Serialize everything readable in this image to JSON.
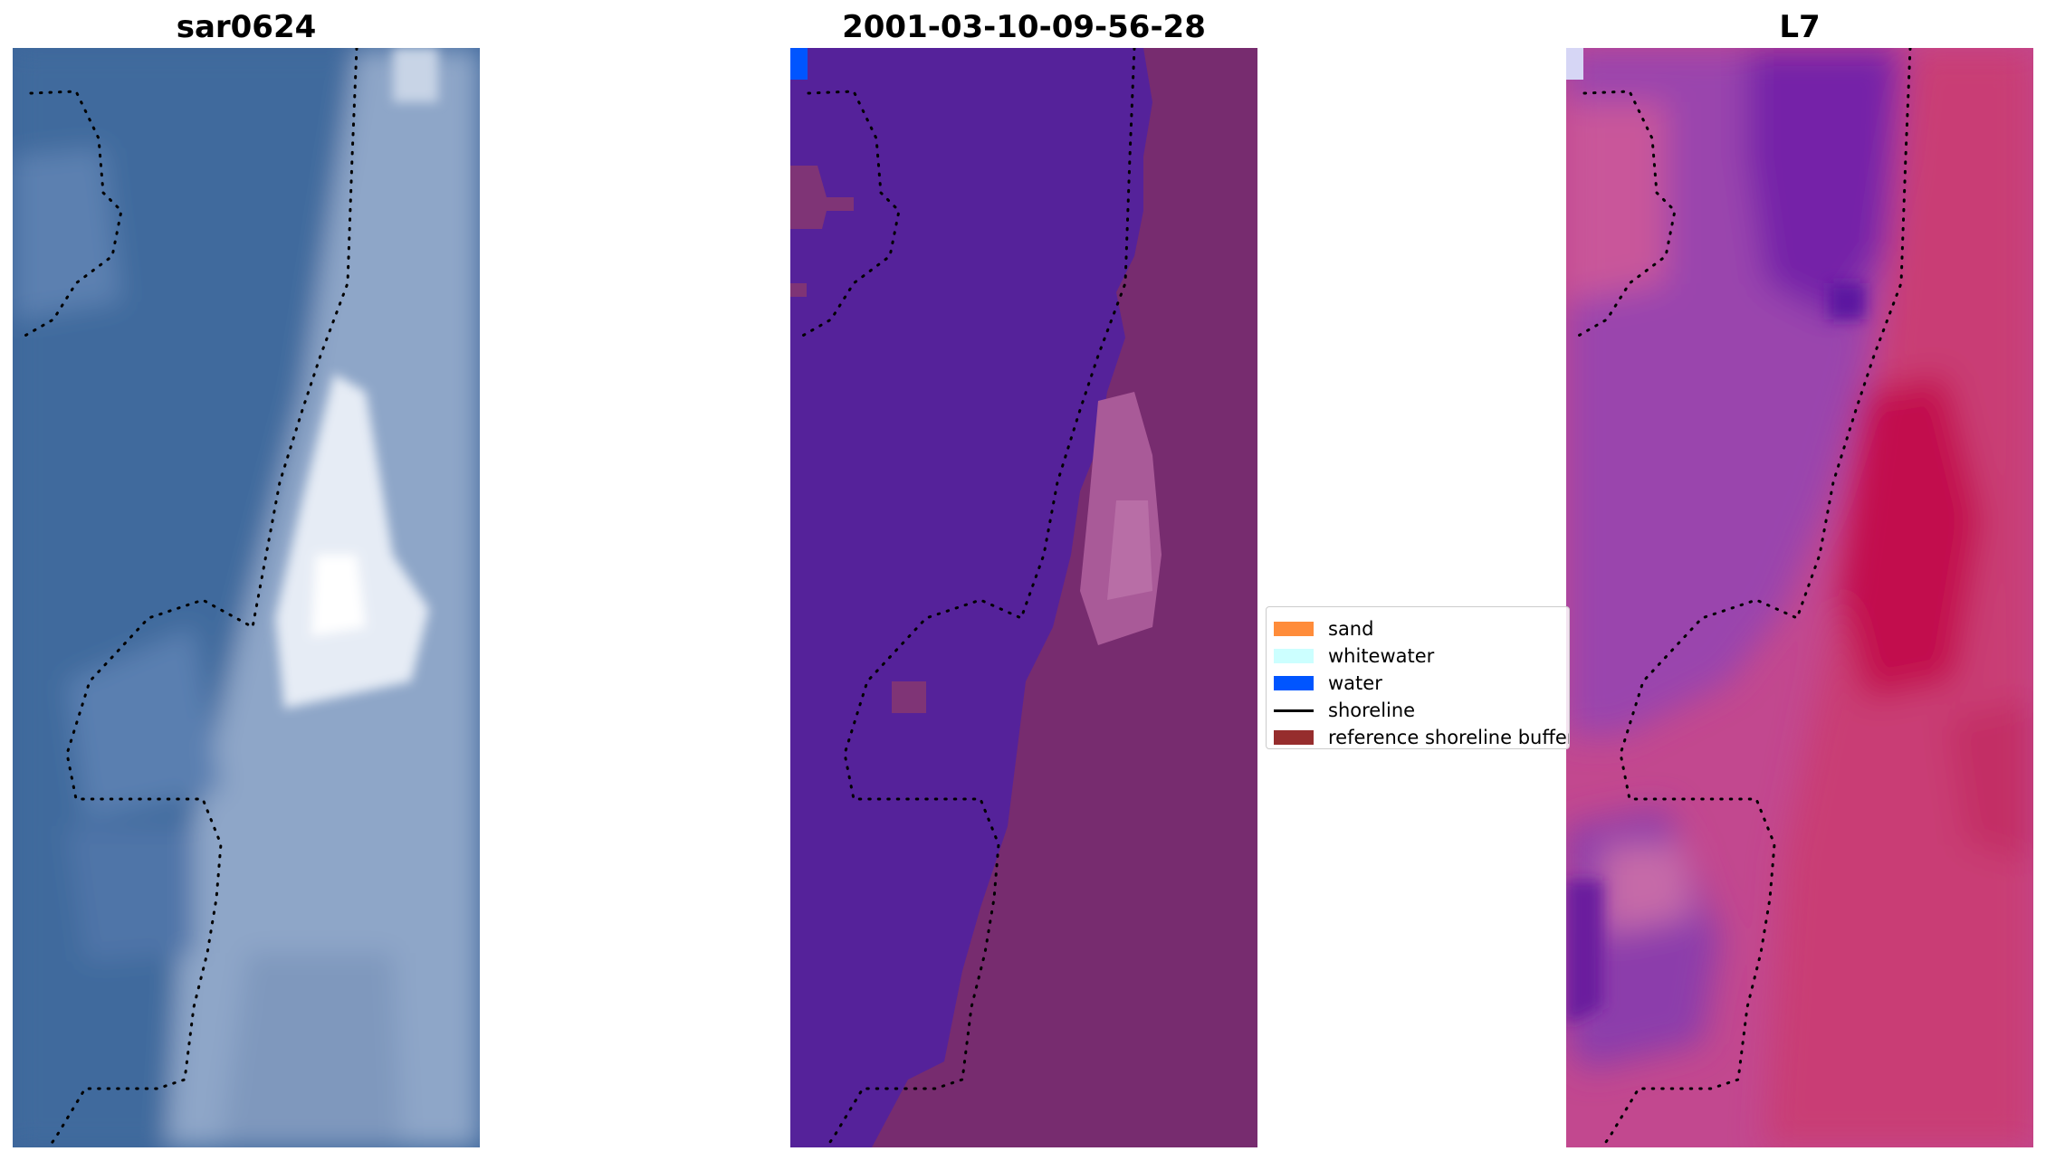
{
  "panels": [
    {
      "title": "sar0624"
    },
    {
      "title": "2001-03-10-09-56-28"
    },
    {
      "title": "L7"
    }
  ],
  "legend": {
    "items": [
      {
        "label": "sand",
        "color": "#ff8c3a",
        "kind": "patch"
      },
      {
        "label": "whitewater",
        "color": "#ccffff",
        "kind": "patch"
      },
      {
        "label": "water",
        "color": "#0055ff",
        "kind": "patch"
      },
      {
        "label": "shoreline",
        "color": "#000000",
        "kind": "line"
      },
      {
        "label": "reference shoreline buffer",
        "color": "#962d2d",
        "kind": "patch"
      }
    ]
  },
  "colors": {
    "rgb_water": "#3f6b9e",
    "rgb_land": "#8fa6c7",
    "rgb_bright": "#f2f2f2",
    "class_water": "#55229a",
    "class_land": "#7a2f70",
    "class_land_light": "#b066a0",
    "class_water_pixel": "#0055ff",
    "index_purple": "#8a3aa8",
    "index_red": "#c8245a",
    "index_pink": "#d36a9e"
  }
}
